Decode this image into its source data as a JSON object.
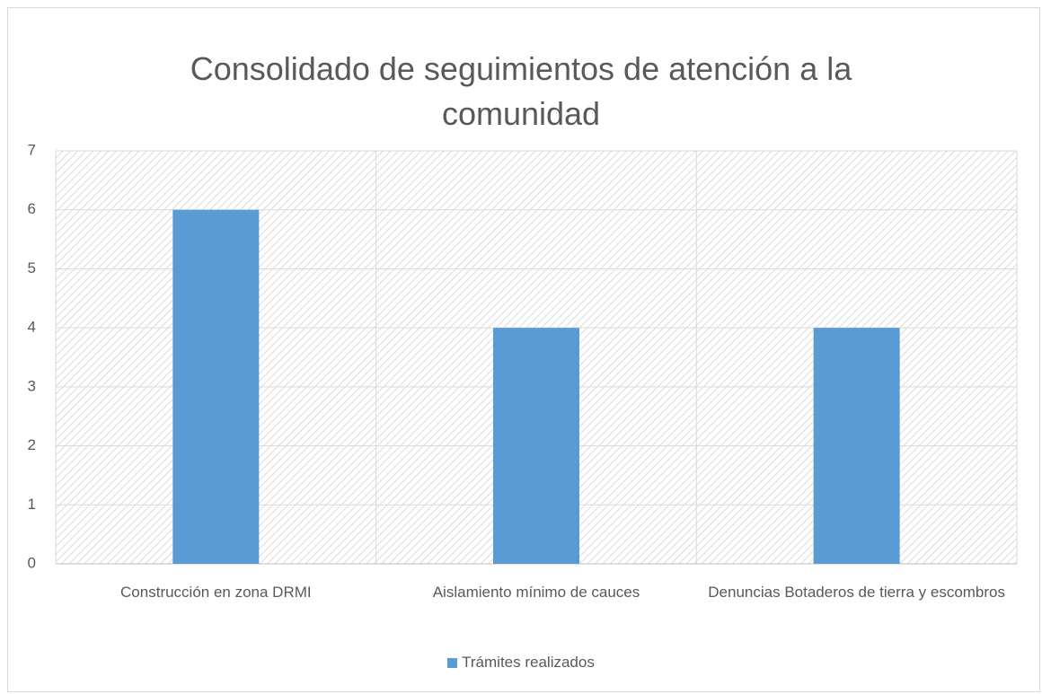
{
  "chart_data": {
    "type": "bar",
    "title": "Consolidado de seguimientos de atención a la comunidad",
    "categories": [
      "Construcción en zona DRMI",
      "Aislamiento mínimo de cauces",
      "Denuncias Botaderos de tierra y escombros"
    ],
    "series": [
      {
        "name": "Trámites realizados",
        "color": "#5b9bd5",
        "values": [
          6,
          4,
          4
        ]
      }
    ],
    "ylim": [
      0,
      7
    ],
    "yticks": [
      0,
      1,
      2,
      3,
      4,
      5,
      6,
      7
    ],
    "grid": true,
    "legend": "bottom"
  }
}
